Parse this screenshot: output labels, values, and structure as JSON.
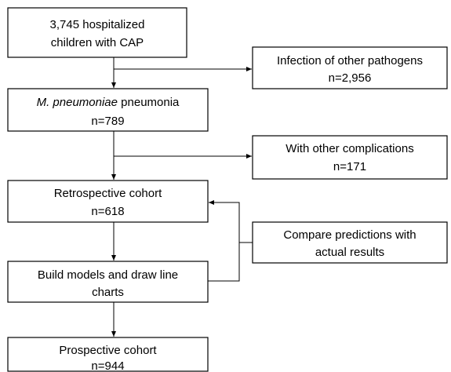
{
  "nodes": [
    {
      "lines": [
        "3,745 hospitalized",
        "children with CAP"
      ]
    },
    {
      "lines": [
        "Infection of other pathogens",
        "n=2,956"
      ]
    },
    {
      "lines": [
        {
          "italic": "M. pneumoniae",
          "text": " pneumonia"
        },
        "n=789"
      ]
    },
    {
      "lines": [
        "With other complications",
        "n=171"
      ]
    },
    {
      "lines": [
        "Retrospective cohort",
        "n=618"
      ]
    },
    {
      "lines": [
        "Compare predictions with",
        "actual results"
      ]
    },
    {
      "lines": [
        "Build models and draw line",
        "charts"
      ]
    },
    {
      "lines": [
        "Prospective cohort",
        "n=944"
      ]
    }
  ]
}
